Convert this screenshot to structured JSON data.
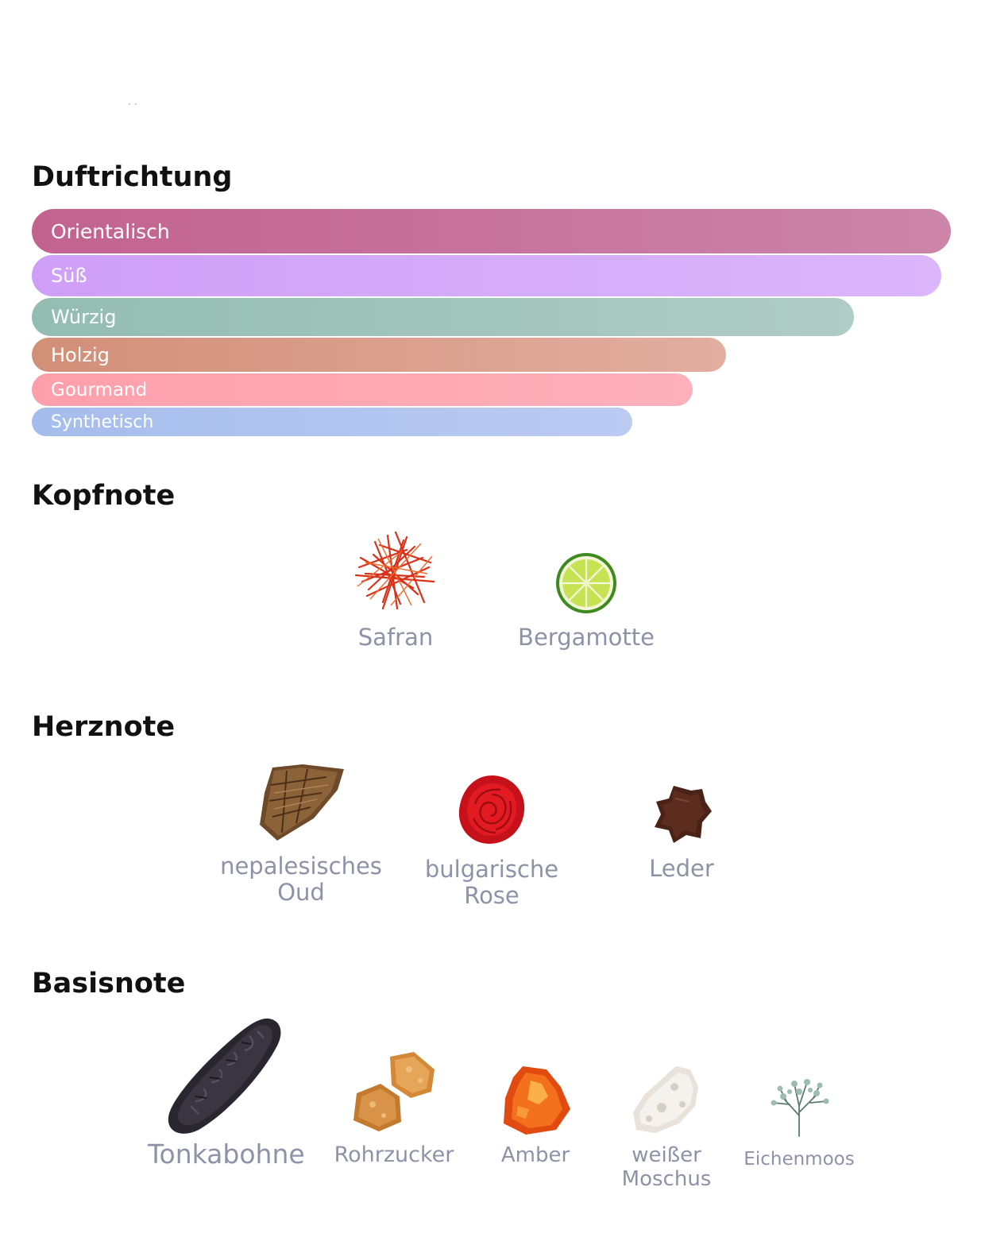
{
  "sections": {
    "accords_title": "Duftrichtung",
    "top_title": "Kopfnote",
    "heart_title": "Herznote",
    "base_title": "Basisnote"
  },
  "accords": [
    {
      "label": "Orientalisch",
      "strength": 1.0,
      "color": "#c2628f"
    },
    {
      "label": "Süß",
      "strength": 0.99,
      "color": "#cf9ff8"
    },
    {
      "label": "Würzig",
      "strength": 0.89,
      "color": "#93bdb2"
    },
    {
      "label": "Holzig",
      "strength": 0.76,
      "color": "#d28f78"
    },
    {
      "label": "Gourmand",
      "strength": 0.72,
      "color": "#fd9fab"
    },
    {
      "label": "Synthetisch",
      "strength": 0.65,
      "color": "#a5bdec"
    }
  ],
  "top_notes": [
    {
      "label": "Safran",
      "icon": "saffron-icon"
    },
    {
      "label": "Bergamotte",
      "icon": "bergamot-icon"
    }
  ],
  "heart_notes": [
    {
      "label": "nepalesisches Oud",
      "icon": "oud-wood-icon"
    },
    {
      "label": "bulgarische Rose",
      "icon": "rose-icon"
    },
    {
      "label": "Leder",
      "icon": "leather-icon"
    }
  ],
  "base_notes": [
    {
      "label": "Tonkabohne",
      "icon": "tonka-bean-icon"
    },
    {
      "label": "Rohrzucker",
      "icon": "cane-sugar-icon"
    },
    {
      "label": "Amber",
      "icon": "amber-icon"
    },
    {
      "label": "weißer Moschus",
      "icon": "white-musk-icon"
    },
    {
      "label": "Eichenmoos",
      "icon": "oakmoss-icon"
    }
  ]
}
